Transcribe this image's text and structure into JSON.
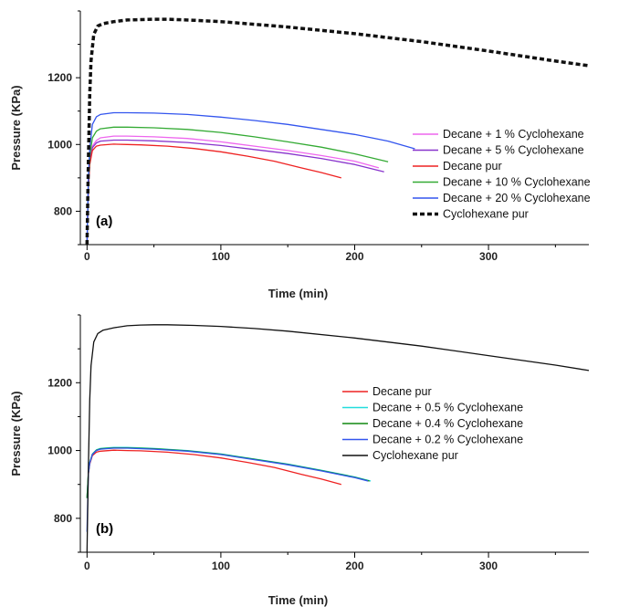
{
  "chart_data": [
    {
      "type": "line",
      "panel_label": "(a)",
      "xlabel": "Time (min)",
      "ylabel": "Pressure (KPa)",
      "xlim": [
        -5,
        375
      ],
      "ylim": [
        700,
        1400
      ],
      "xticks": [
        0,
        100,
        200,
        300
      ],
      "xtick_labels": [
        "0",
        "100",
        "200",
        "300"
      ],
      "yticks": [
        800,
        1000,
        1200
      ],
      "ytick_labels": [
        "800",
        "1000",
        "1200"
      ],
      "legend_position": "right",
      "series": [
        {
          "name": "Decane + 1 % Cyclohexane",
          "color": "#ee66ee",
          "dash": "solid",
          "x": [
            0,
            1,
            2,
            4,
            7,
            10,
            20,
            30,
            50,
            75,
            100,
            125,
            150,
            175,
            200,
            218
          ],
          "y": [
            700,
            880,
            950,
            995,
            1012,
            1020,
            1025,
            1025,
            1023,
            1018,
            1008,
            995,
            982,
            967,
            950,
            930
          ]
        },
        {
          "name": "Decane + 5 % Cyclohexane",
          "color": "#8833cc",
          "dash": "solid",
          "x": [
            0,
            1,
            2,
            4,
            7,
            10,
            20,
            30,
            50,
            75,
            100,
            125,
            150,
            175,
            200,
            222
          ],
          "y": [
            700,
            875,
            945,
            990,
            1005,
            1010,
            1013,
            1013,
            1011,
            1006,
            997,
            985,
            973,
            958,
            940,
            918
          ]
        },
        {
          "name": "Decane pur",
          "color": "#ee2222",
          "dash": "solid",
          "x": [
            0,
            1,
            2,
            4,
            7,
            10,
            20,
            30,
            40,
            60,
            80,
            100,
            120,
            140,
            160,
            175,
            190
          ],
          "y": [
            700,
            870,
            940,
            982,
            995,
            998,
            1001,
            1000,
            999,
            995,
            988,
            978,
            965,
            950,
            930,
            916,
            900
          ]
        },
        {
          "name": "Decane + 10 % Cyclohexane",
          "color": "#33aa33",
          "dash": "solid",
          "x": [
            0,
            1,
            2,
            4,
            7,
            10,
            20,
            30,
            50,
            75,
            100,
            125,
            150,
            175,
            200,
            225
          ],
          "y": [
            700,
            890,
            965,
            1020,
            1040,
            1047,
            1052,
            1052,
            1050,
            1045,
            1036,
            1023,
            1008,
            992,
            972,
            948
          ]
        },
        {
          "name": "Decane + 20 % Cyclohexane",
          "color": "#3355ee",
          "dash": "solid",
          "x": [
            0,
            1,
            2,
            4,
            7,
            10,
            20,
            30,
            50,
            75,
            100,
            125,
            150,
            175,
            200,
            225,
            245
          ],
          "y": [
            700,
            900,
            990,
            1060,
            1083,
            1090,
            1095,
            1095,
            1094,
            1090,
            1082,
            1072,
            1060,
            1045,
            1030,
            1010,
            987
          ]
        },
        {
          "name": "Cyclohexane pur",
          "color": "#111111",
          "dash": "dashed",
          "x": [
            0,
            1,
            2,
            3,
            5,
            8,
            12,
            20,
            30,
            40,
            50,
            60,
            80,
            100,
            125,
            150,
            200,
            250,
            300,
            350,
            375
          ],
          "y": [
            700,
            950,
            1150,
            1250,
            1330,
            1355,
            1362,
            1368,
            1373,
            1374,
            1375,
            1375,
            1372,
            1368,
            1360,
            1352,
            1332,
            1308,
            1280,
            1250,
            1236
          ]
        }
      ]
    },
    {
      "type": "line",
      "panel_label": "(b)",
      "xlabel": "Time (min)",
      "ylabel": "Pressure (KPa)",
      "xlim": [
        -5,
        375
      ],
      "ylim": [
        700,
        1400
      ],
      "xticks": [
        0,
        100,
        200,
        300
      ],
      "xtick_labels": [
        "0",
        "100",
        "200",
        "300"
      ],
      "yticks": [
        800,
        1000,
        1200
      ],
      "ytick_labels": [
        "800",
        "1000",
        "1200"
      ],
      "legend_position": "right",
      "series": [
        {
          "name": "Decane pur",
          "color": "#ee2222",
          "dash": "solid",
          "x": [
            0,
            1,
            2,
            4,
            7,
            10,
            20,
            30,
            40,
            60,
            80,
            100,
            120,
            140,
            160,
            175,
            190
          ],
          "y": [
            860,
            930,
            960,
            985,
            995,
            998,
            1001,
            1000,
            999,
            995,
            988,
            978,
            965,
            950,
            930,
            916,
            900
          ]
        },
        {
          "name": "Decane + 0.5 % Cyclohexane",
          "color": "#22dddd",
          "dash": "solid",
          "x": [
            0,
            1,
            2,
            4,
            7,
            10,
            20,
            30,
            50,
            75,
            100,
            125,
            150,
            175,
            200,
            212
          ],
          "y": [
            860,
            935,
            965,
            990,
            1002,
            1006,
            1009,
            1009,
            1006,
            1000,
            990,
            975,
            960,
            942,
            922,
            910
          ]
        },
        {
          "name": "Decane + 0.4 % Cyclohexane",
          "color": "#118811",
          "dash": "solid",
          "x": [
            0,
            1,
            2,
            4,
            7,
            10,
            20,
            30,
            50,
            75,
            100,
            125,
            150,
            175,
            200,
            211
          ],
          "y": [
            860,
            934,
            964,
            989,
            1001,
            1005,
            1008,
            1008,
            1005,
            999,
            989,
            974,
            959,
            941,
            921,
            910
          ]
        },
        {
          "name": "Decane + 0.2 % Cyclohexane",
          "color": "#3355ee",
          "dash": "solid",
          "x": [
            0,
            1,
            2,
            4,
            7,
            10,
            20,
            30,
            50,
            75,
            100,
            125,
            150,
            175,
            200,
            210
          ],
          "y": [
            760,
            933,
            963,
            988,
            1000,
            1004,
            1007,
            1007,
            1004,
            998,
            988,
            973,
            958,
            940,
            920,
            910
          ]
        },
        {
          "name": "Cyclohexane pur",
          "color": "#111111",
          "dash": "solid",
          "x": [
            0,
            1,
            2,
            3,
            5,
            8,
            12,
            20,
            30,
            40,
            50,
            60,
            80,
            100,
            125,
            150,
            200,
            250,
            300,
            350,
            375
          ],
          "y": [
            700,
            950,
            1150,
            1250,
            1320,
            1345,
            1355,
            1362,
            1368,
            1370,
            1371,
            1371,
            1369,
            1366,
            1360,
            1352,
            1332,
            1308,
            1280,
            1252,
            1236
          ]
        }
      ]
    }
  ]
}
